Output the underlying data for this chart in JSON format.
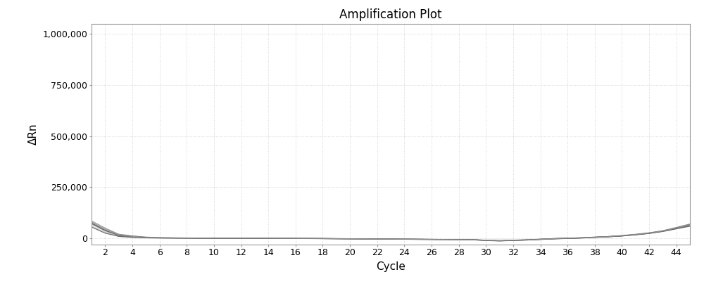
{
  "title": "Amplification Plot",
  "xlabel": "Cycle",
  "ylabel": "ΔRn",
  "xlim": [
    1,
    45
  ],
  "ylim": [
    -30000,
    1050000
  ],
  "yticks": [
    0,
    250000,
    500000,
    750000,
    1000000
  ],
  "ytick_labels": [
    "0",
    "250,000",
    "500,000",
    "750,000",
    "1,000,000"
  ],
  "xticks": [
    2,
    4,
    6,
    8,
    10,
    12,
    14,
    16,
    18,
    20,
    22,
    24,
    26,
    28,
    30,
    32,
    34,
    36,
    38,
    40,
    42,
    44
  ],
  "background_color": "#ffffff",
  "plot_bg_color": "#ffffff",
  "grid_color": "#cccccc",
  "line_color_dark": "#555555",
  "line_color_light": "#aaaaaa",
  "title_fontsize": 12,
  "axis_label_fontsize": 11,
  "tick_fontsize": 9,
  "cycles": [
    1,
    2,
    3,
    4,
    5,
    6,
    7,
    8,
    9,
    10,
    11,
    12,
    13,
    14,
    15,
    16,
    17,
    18,
    19,
    20,
    21,
    22,
    23,
    24,
    25,
    26,
    27,
    28,
    29,
    30,
    31,
    32,
    33,
    34,
    35,
    36,
    37,
    38,
    39,
    40,
    41,
    42,
    43,
    44,
    45
  ],
  "line_data": [
    [
      75000,
      40000,
      15000,
      8000,
      4000,
      2000,
      1500,
      1000,
      500,
      200,
      100,
      0,
      -100,
      -500,
      -800,
      -1000,
      -1200,
      -1500,
      -2000,
      -2500,
      -3000,
      -3500,
      -4000,
      -4500,
      -5000,
      -5500,
      -6000,
      -6500,
      -7000,
      -10000,
      -12000,
      -10000,
      -8000,
      -5000,
      -2000,
      0,
      2000,
      5000,
      8000,
      12000,
      18000,
      25000,
      35000,
      50000,
      65000
    ],
    [
      68000,
      35000,
      12000,
      6000,
      3000,
      1500,
      1000,
      700,
      300,
      100,
      0,
      -200,
      -400,
      -800,
      -1000,
      -1200,
      -1500,
      -2000,
      -2500,
      -3000,
      -3500,
      -4000,
      -4500,
      -5000,
      -5500,
      -6000,
      -6500,
      -7000,
      -8000,
      -11000,
      -13000,
      -11000,
      -9000,
      -6000,
      -3000,
      -1000,
      1000,
      4000,
      7000,
      11000,
      17000,
      24000,
      34000,
      48000,
      62000
    ],
    [
      80000,
      45000,
      18000,
      10000,
      5000,
      2500,
      2000,
      1500,
      800,
      400,
      200,
      100,
      0,
      -300,
      -600,
      -800,
      -1000,
      -1300,
      -1700,
      -2200,
      -2700,
      -3200,
      -3700,
      -4200,
      -4700,
      -5200,
      -5700,
      -6200,
      -6700,
      -9500,
      -11500,
      -9500,
      -7500,
      -4500,
      -1500,
      500,
      2500,
      5500,
      8500,
      13000,
      19000,
      26000,
      36000,
      52000,
      68000
    ],
    [
      72000,
      38000,
      14000,
      7000,
      3500,
      1800,
      1200,
      800,
      400,
      150,
      50,
      -100,
      -300,
      -600,
      -900,
      -1100,
      -1300,
      -1700,
      -2200,
      -2700,
      -3200,
      -3700,
      -4200,
      -4700,
      -5200,
      -5700,
      -6200,
      -6700,
      -7500,
      -10500,
      -12500,
      -10500,
      -8500,
      -5500,
      -2500,
      -500,
      1500,
      4500,
      7500,
      11500,
      17500,
      24500,
      34500,
      49000,
      63000
    ],
    [
      60000,
      30000,
      10000,
      5000,
      2500,
      1200,
      800,
      500,
      200,
      50,
      -50,
      -250,
      -450,
      -700,
      -1000,
      -1200,
      -1400,
      -1800,
      -2300,
      -2800,
      -3300,
      -3800,
      -4300,
      -4800,
      -5300,
      -5800,
      -6300,
      -6800,
      -7500,
      -10500,
      -12500,
      -10500,
      -8500,
      -5500,
      -2500,
      -500,
      1500,
      4500,
      7500,
      11500,
      17000,
      24000,
      33500,
      47000,
      60000
    ],
    [
      85000,
      50000,
      20000,
      12000,
      6000,
      3000,
      2200,
      1700,
      1000,
      500,
      300,
      150,
      50,
      -200,
      -500,
      -700,
      -900,
      -1200,
      -1600,
      -2100,
      -2600,
      -3100,
      -3600,
      -4100,
      -4600,
      -5100,
      -5600,
      -6100,
      -6600,
      -9200,
      -11200,
      -9200,
      -7200,
      -4200,
      -1200,
      800,
      2800,
      5800,
      8800,
      13500,
      19500,
      27000,
      37000,
      53000,
      70000
    ],
    [
      55000,
      25000,
      9000,
      4500,
      2000,
      1000,
      700,
      400,
      150,
      30,
      -100,
      -300,
      -500,
      -800,
      -1100,
      -1300,
      -1500,
      -1900,
      -2400,
      -2900,
      -3400,
      -3900,
      -4400,
      -4900,
      -5400,
      -5900,
      -6400,
      -6900,
      -7800,
      -11000,
      -13200,
      -11000,
      -9000,
      -6000,
      -3000,
      -1000,
      1000,
      4000,
      7000,
      11000,
      16500,
      23500,
      33000,
      46000,
      59000
    ],
    [
      78000,
      42000,
      16000,
      9000,
      4500,
      2200,
      1700,
      1200,
      600,
      250,
      120,
      20,
      -80,
      -400,
      -700,
      -900,
      -1100,
      -1400,
      -1900,
      -2400,
      -2900,
      -3400,
      -3900,
      -4400,
      -4900,
      -5400,
      -5900,
      -6400,
      -7200,
      -10200,
      -12200,
      -10200,
      -8200,
      -5200,
      -2200,
      -200,
      1800,
      4800,
      7800,
      12200,
      18200,
      25200,
      35200,
      50500,
      64500
    ]
  ]
}
